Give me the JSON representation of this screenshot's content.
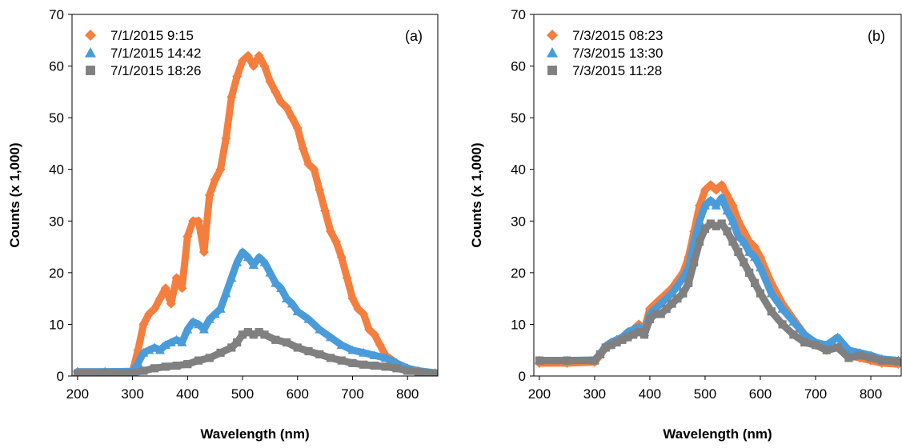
{
  "chart_data": [
    {
      "type": "scatter",
      "panel_label": "(a)",
      "xlabel": "Wavelength (nm)",
      "ylabel": "Counts (x 1,000)",
      "xlim": [
        190,
        855
      ],
      "ylim": [
        0,
        70
      ],
      "xticks": [
        200,
        300,
        400,
        500,
        600,
        700,
        800
      ],
      "yticks": [
        0,
        10,
        20,
        30,
        40,
        50,
        60,
        70
      ],
      "grid": false,
      "legend": "top-left",
      "series": [
        {
          "name": "7/1/2015 9:15",
          "marker": "diamond",
          "color": "#F47E3E",
          "x": [
            200,
            250,
            300,
            310,
            320,
            330,
            340,
            350,
            360,
            370,
            380,
            390,
            400,
            410,
            420,
            430,
            440,
            450,
            460,
            470,
            480,
            490,
            500,
            510,
            520,
            530,
            540,
            550,
            560,
            570,
            580,
            590,
            600,
            610,
            620,
            630,
            640,
            650,
            660,
            670,
            680,
            690,
            700,
            710,
            720,
            730,
            740,
            750,
            760,
            780,
            800,
            820,
            850
          ],
          "y": [
            0.8,
            0.8,
            0.9,
            5,
            10,
            12,
            13,
            15,
            17,
            14,
            19,
            17,
            27,
            30,
            30,
            24,
            35,
            38,
            40,
            46,
            54,
            58,
            61,
            62,
            60,
            62,
            60,
            57,
            55,
            53,
            52,
            50,
            48,
            44,
            41,
            40,
            36,
            32,
            28,
            26,
            23,
            19,
            15,
            13,
            12,
            9,
            8,
            6,
            4,
            2.5,
            1.5,
            0.8,
            0.5
          ]
        },
        {
          "name": "7/1/2015 14:42",
          "marker": "triangle",
          "color": "#4A9BD9",
          "x": [
            200,
            250,
            300,
            310,
            320,
            330,
            340,
            350,
            360,
            370,
            380,
            390,
            400,
            410,
            420,
            430,
            440,
            450,
            460,
            470,
            480,
            490,
            500,
            510,
            520,
            530,
            540,
            550,
            560,
            570,
            580,
            590,
            600,
            620,
            640,
            660,
            680,
            700,
            720,
            740,
            760,
            780,
            800,
            820,
            850
          ],
          "y": [
            0.8,
            0.8,
            0.9,
            2.5,
            4.5,
            5,
            5.5,
            5,
            6,
            6.5,
            7,
            6.5,
            9,
            10.5,
            10,
            9,
            11,
            12,
            13,
            16,
            19,
            22,
            24,
            23,
            21.5,
            23,
            22,
            20,
            18,
            17,
            15,
            14,
            12.5,
            11,
            9,
            7.5,
            6,
            5,
            4.5,
            4,
            3.5,
            2.5,
            1.5,
            1,
            0.6
          ]
        },
        {
          "name": "7/1/2015 18:26",
          "marker": "square",
          "color": "#808080",
          "x": [
            200,
            250,
            300,
            320,
            340,
            360,
            380,
            400,
            420,
            440,
            460,
            480,
            490,
            500,
            510,
            520,
            530,
            540,
            560,
            580,
            600,
            620,
            640,
            660,
            680,
            700,
            720,
            740,
            760,
            780,
            800,
            820,
            850
          ],
          "y": [
            0.5,
            0.6,
            0.6,
            1,
            1.5,
            1.8,
            2,
            2.3,
            3,
            3.5,
            4.5,
            5.5,
            6.5,
            8,
            8.5,
            8,
            8.5,
            8,
            7,
            6.5,
            5.5,
            4.8,
            4.2,
            3.5,
            3,
            2.5,
            2.2,
            2,
            1.8,
            1.5,
            1,
            0.8,
            0.5
          ]
        }
      ]
    },
    {
      "type": "scatter",
      "panel_label": "(b)",
      "xlabel": "Wavelength (nm)",
      "ylabel": "Counts (x 1,000)",
      "xlim": [
        190,
        855
      ],
      "ylim": [
        0,
        70
      ],
      "xticks": [
        200,
        300,
        400,
        500,
        600,
        700,
        800
      ],
      "yticks": [
        0,
        10,
        20,
        30,
        40,
        50,
        60,
        70
      ],
      "grid": false,
      "legend": "top-left",
      "series": [
        {
          "name": "7/3/2015 08:23",
          "marker": "diamond",
          "color": "#F47E3E",
          "x": [
            200,
            250,
            300,
            310,
            320,
            330,
            340,
            350,
            360,
            370,
            380,
            390,
            400,
            410,
            420,
            430,
            440,
            450,
            460,
            470,
            480,
            490,
            500,
            510,
            520,
            530,
            540,
            550,
            560,
            570,
            580,
            590,
            600,
            620,
            640,
            660,
            680,
            700,
            720,
            740,
            760,
            780,
            800,
            820,
            850
          ],
          "y": [
            2.5,
            2.5,
            2.7,
            4,
            5.5,
            6.5,
            7,
            7.5,
            8.5,
            9,
            10,
            9,
            13,
            14,
            15,
            16,
            17,
            18.5,
            20,
            23,
            28,
            33,
            36,
            37,
            36,
            37,
            35,
            33,
            30,
            28,
            26,
            25,
            23,
            18,
            14,
            11,
            8,
            6,
            5,
            5.5,
            4,
            3.5,
            3,
            2.5,
            2.3
          ]
        },
        {
          "name": "7/3/2015 13:30",
          "marker": "triangle",
          "color": "#4A9BD9",
          "x": [
            200,
            250,
            300,
            310,
            320,
            330,
            340,
            350,
            360,
            370,
            380,
            390,
            400,
            410,
            420,
            430,
            440,
            450,
            460,
            470,
            480,
            490,
            500,
            510,
            520,
            530,
            540,
            550,
            560,
            570,
            580,
            590,
            600,
            620,
            640,
            660,
            680,
            700,
            720,
            740,
            760,
            780,
            800,
            820,
            850
          ],
          "y": [
            3,
            3,
            3.1,
            4.3,
            5.8,
            6.5,
            7,
            7.5,
            8.5,
            9,
            9.5,
            8.5,
            12,
            13,
            14,
            15,
            16,
            17.5,
            19,
            21,
            26,
            30,
            33,
            34,
            33,
            34.5,
            32,
            30,
            27,
            26,
            24,
            23,
            21,
            16,
            13,
            10.5,
            8,
            6.5,
            6,
            7.5,
            5,
            4.5,
            4,
            3.3,
            3
          ]
        },
        {
          "name": "7/3/2015 11:28",
          "marker": "square",
          "color": "#808080",
          "x": [
            200,
            250,
            300,
            310,
            320,
            330,
            340,
            350,
            360,
            370,
            380,
            390,
            400,
            410,
            420,
            430,
            440,
            450,
            460,
            470,
            480,
            490,
            500,
            510,
            520,
            530,
            540,
            550,
            560,
            570,
            580,
            590,
            600,
            620,
            640,
            660,
            680,
            700,
            720,
            740,
            760,
            780,
            800,
            820,
            850
          ],
          "y": [
            3,
            3,
            3,
            4.2,
            5.5,
            6,
            6.5,
            7,
            7.5,
            8,
            8.5,
            8,
            11,
            12,
            12,
            13,
            14,
            15,
            16,
            18,
            22,
            26,
            28.5,
            29.5,
            29,
            29.5,
            28,
            26,
            24,
            22,
            20,
            18,
            16,
            12.5,
            10,
            8,
            6.5,
            6,
            5,
            5.5,
            3.5,
            4,
            3.5,
            3,
            2.8
          ]
        }
      ]
    }
  ]
}
